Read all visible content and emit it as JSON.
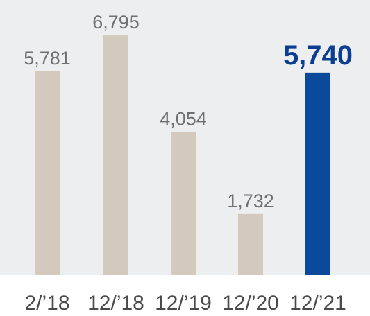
{
  "chart_data": {
    "type": "bar",
    "categories": [
      "2/’18",
      "12/’18",
      "12/’19",
      "12/’20",
      "12/’21"
    ],
    "values": [
      5781,
      6795,
      4054,
      1732,
      5740
    ],
    "value_labels": [
      "5,781",
      "6,795",
      "4,054",
      "1,732",
      "5,740"
    ],
    "highlight_index": 4,
    "title": "",
    "xlabel": "",
    "ylabel": "",
    "ylim": [
      0,
      7800
    ],
    "grid": false,
    "legend": "none",
    "colors": {
      "plot_background": "#edeef0",
      "bar": "#d3c9bd",
      "highlight_bar": "#0b4a9b",
      "label": "#6f6f6f",
      "highlight_label": "#0b3d91",
      "tick_label": "#4a4a4a"
    }
  }
}
